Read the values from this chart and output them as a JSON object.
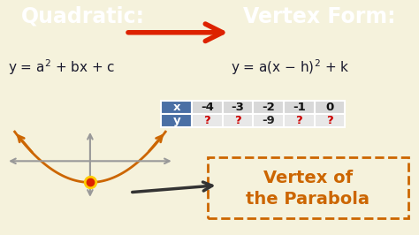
{
  "bg_top": "#6699cc",
  "bg_bottom": "#f5f2dc",
  "quadratic_title": "Quadratic:",
  "vertex_title": "Vertex Form:",
  "table_x_vals": [
    "-4",
    "-3",
    "-2",
    "-1",
    "0"
  ],
  "table_y_vals": [
    "?",
    "?",
    "-9",
    "?",
    "?"
  ],
  "table_header_bg": "#4a6fa5",
  "table_header_color": "#ffffff",
  "table_cell_bg": "#d8d8d8",
  "table_y_cell_bg": "#e8e8e8",
  "table_y_question_color": "#cc0000",
  "table_y_known_color": "#222222",
  "vertex_box_color": "#cc6600",
  "vertex_box_border": "#cc6600",
  "parabola_color": "#cc6600",
  "axis_color": "#999999",
  "vertex_dot_color": "#dd2200",
  "vertex_dot_outer": "#ffcc00",
  "eq_color": "#1a1a2e",
  "banner_arrow_color": "#dd2200"
}
